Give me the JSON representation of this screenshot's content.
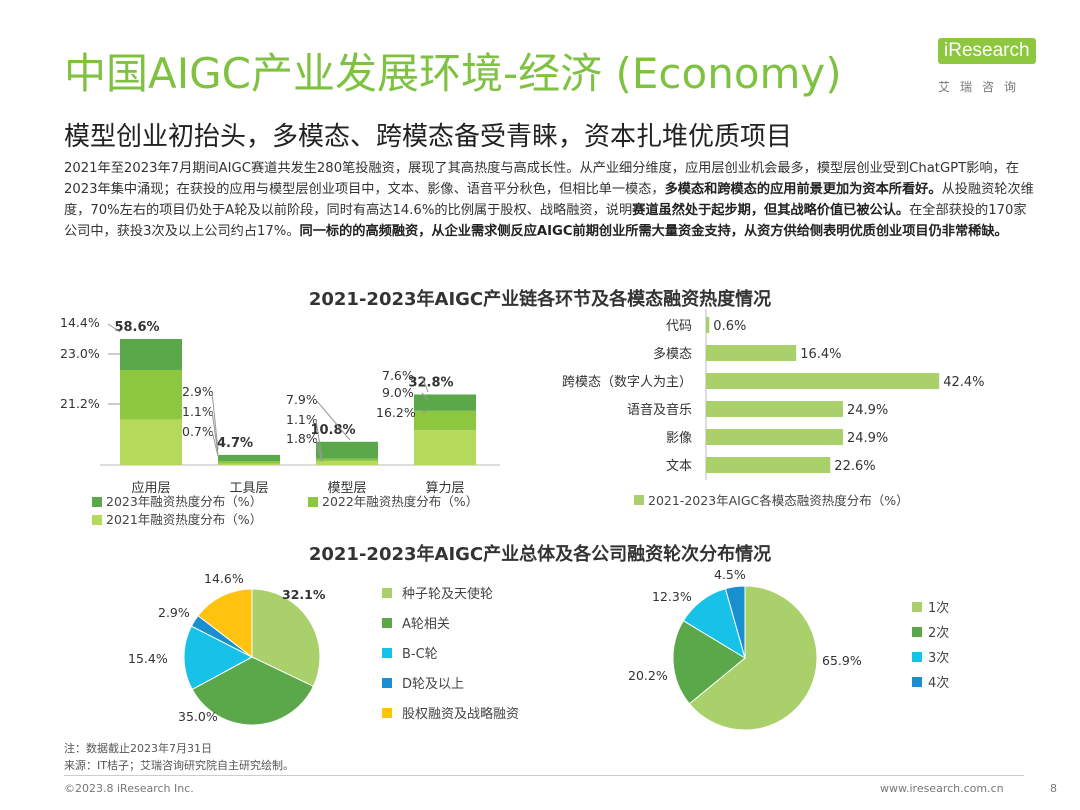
{
  "header": {
    "title": "中国AIGC产业发展环境-经济 (Economy)",
    "subtitle": "模型创业初抬头，多模态、跨模态备受青睐，资本扎堆优质项目",
    "logo_text": "iResearch",
    "logo_sub": "艾瑞咨询"
  },
  "intro": {
    "p1": "2021年至2023年7月期间AIGC赛道共发生280笔投融资，展现了其高热度与高成长性。从产业细分维度，应用层创业机会最多，模型层创业受到ChatGPT影响，在2023年集中涌现；在获投的应用与模型层创业项目中，文本、影像、语音平分秋色，但相比单一模态，",
    "b1": "多模态和跨模态的应用前景更加为资本所看好。",
    "p2": "从投融资轮次维度，70%左右的项目仍处于A轮及以前阶段，同时有高达14.6%的比例属于股权、战略融资，说明",
    "b2": "赛道虽然处于起步期，但其战略价值已被公认。",
    "p3": "在全部获投的170家公司中，获投3次及以上公司约占17%。",
    "b3": "同一标的的高频融资，从企业需求侧反应AIGC前期创业所需大量资金支持，从资方供给侧表明优质创业项目仍非常稀缺。"
  },
  "section1_title": "2021-2023年AIGC产业链各环节及各模态融资热度情况",
  "section2_title": "2021-2023年AIGC产业总体及各公司融资轮次分布情况",
  "colors": {
    "brand": "#7fc241",
    "y2023": "#5aa84a",
    "y2022": "#8dc63f",
    "y2021": "#b5d95b",
    "light_green": "#a9d06a",
    "cyan": "#17c1e8",
    "blue": "#1a8fd0",
    "yellow": "#ffc20e"
  },
  "chart_data": [
    {
      "type": "bar",
      "stacked": true,
      "categories": [
        "应用层",
        "工具层",
        "模型层",
        "算力层"
      ],
      "totals": [
        "58.6%",
        "4.7%",
        "10.8%",
        "32.8%"
      ],
      "series": [
        {
          "name": "2021年融资热度分布（%）",
          "values": [
            21.2,
            0.7,
            1.8,
            16.2
          ]
        },
        {
          "name": "2022年融资热度分布（%）",
          "values": [
            23.0,
            1.1,
            1.1,
            9.0
          ]
        },
        {
          "name": "2023年融资热度分布（%）",
          "values": [
            14.4,
            2.9,
            7.9,
            7.6
          ]
        }
      ],
      "labels": [
        [
          "21.2%",
          "23.0%",
          "14.4%"
        ],
        [
          "0.7%",
          "1.1%",
          "2.9%"
        ],
        [
          "1.8%",
          "1.1%",
          "7.9%"
        ],
        [
          "16.2%",
          "9.0%",
          "7.6%"
        ]
      ]
    },
    {
      "type": "bar",
      "orientation": "horizontal",
      "categories": [
        "代码",
        "多模态",
        "跨模态（数字人为主）",
        "语音及音乐",
        "影像",
        "文本"
      ],
      "values": [
        0.6,
        16.4,
        42.4,
        24.9,
        24.9,
        22.6
      ],
      "labels": [
        "0.6%",
        "16.4%",
        "42.4%",
        "24.9%",
        "24.9%",
        "22.6%"
      ],
      "series_name": "2021-2023年AIGC各模态融资热度分布（%）"
    },
    {
      "type": "pie",
      "categories": [
        "种子轮及天使轮",
        "A轮相关",
        "B-C轮",
        "D轮及以上",
        "股权融资及战略融资"
      ],
      "values": [
        32.1,
        35.0,
        15.4,
        2.9,
        14.6
      ],
      "labels": [
        "32.1%",
        "35.0%",
        "15.4%",
        "2.9%",
        "14.6%"
      ]
    },
    {
      "type": "pie",
      "categories": [
        "1次",
        "2次",
        "3次",
        "4次"
      ],
      "values": [
        65.9,
        20.2,
        12.3,
        4.5
      ],
      "labels": [
        "65.9%",
        "20.2%",
        "12.3%",
        "4.5%"
      ]
    }
  ],
  "footer": {
    "note": "注：数据截止2023年7月31日",
    "source": "来源：IT桔子；艾瑞咨询研究院自主研究绘制。",
    "copyright": "©2023.8 iResearch Inc.",
    "url": "www.iresearch.com.cn",
    "page": "8"
  }
}
